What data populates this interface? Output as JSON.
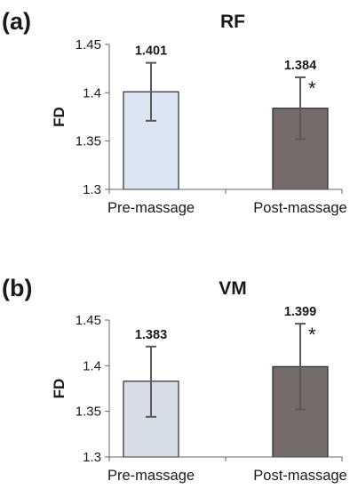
{
  "chart_data": [
    {
      "type": "bar",
      "panel_label": "(a)",
      "title": "RF",
      "ylabel": "FD",
      "xlabel": "",
      "ylim": [
        1.3,
        1.45
      ],
      "yticks": [
        1.3,
        1.35,
        1.4,
        1.45
      ],
      "ytick_labels": [
        "1.3",
        "1.35",
        "1.4",
        "1.45"
      ],
      "categories": [
        "Pre-massage",
        "Post-massage"
      ],
      "values": [
        1.401,
        1.384
      ],
      "data_labels": [
        "1.401",
        "1.384"
      ],
      "error_low": [
        1.371,
        1.352
      ],
      "error_high": [
        1.431,
        1.416
      ],
      "bar_colors": [
        "#dce6f2",
        "#746c6a"
      ],
      "annotations": [
        "",
        "*"
      ],
      "grid": false,
      "legend": "none"
    },
    {
      "type": "bar",
      "panel_label": "(b)",
      "title": "VM",
      "ylabel": "FD",
      "xlabel": "",
      "ylim": [
        1.3,
        1.45
      ],
      "yticks": [
        1.3,
        1.35,
        1.4,
        1.45
      ],
      "ytick_labels": [
        "1.3",
        "1.35",
        "1.4",
        "1.45"
      ],
      "categories": [
        "Pre-massage",
        "Post-massage"
      ],
      "values": [
        1.383,
        1.399
      ],
      "data_labels": [
        "1.383",
        "1.399"
      ],
      "error_low": [
        1.344,
        1.352
      ],
      "error_high": [
        1.421,
        1.446
      ],
      "bar_colors": [
        "#d7dde6",
        "#746c6a"
      ],
      "annotations": [
        "",
        "*"
      ],
      "grid": false,
      "legend": "none"
    }
  ]
}
